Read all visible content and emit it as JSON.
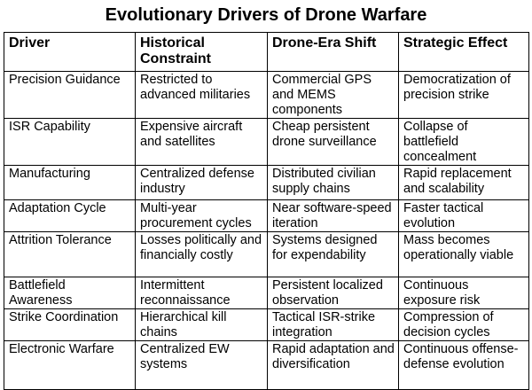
{
  "title": "Evolutionary Drivers of Drone Warfare",
  "table": {
    "header": [
      "Driver",
      "Historical Constraint",
      "Drone-Era Shift",
      "Strategic Effect"
    ],
    "rows": [
      [
        "Precision Guidance",
        "Restricted to advanced militaries",
        "Commercial GPS and MEMS components",
        "Democratization of precision strike"
      ],
      [
        "ISR Capability",
        "Expensive aircraft and satellites",
        "Cheap persistent drone surveillance",
        "Collapse of battlefield concealment"
      ],
      [
        "Manufacturing",
        "Centralized defense industry",
        "Distributed civilian supply chains",
        "Rapid replacement and scalability"
      ],
      [
        "Adaptation Cycle",
        "Multi-year procurement cycles",
        "Near software-speed iteration",
        "Faster tactical evolution"
      ],
      [
        "Attrition Tolerance",
        "Losses politically and financially costly",
        "Systems designed for expendability",
        "Mass becomes operationally viable"
      ],
      [
        "Battlefield Awareness",
        "Intermittent reconnaissance",
        "Persistent localized observation",
        "Continuous exposure risk"
      ],
      [
        "Strike Coordination",
        "Hierarchical kill chains",
        "Tactical ISR-strike integration",
        "Compression of decision cycles"
      ],
      [
        "Electronic Warfare",
        "Centralized EW systems",
        "Rapid adaptation and diversification",
        "Continuous offense-defense evolution"
      ]
    ]
  }
}
